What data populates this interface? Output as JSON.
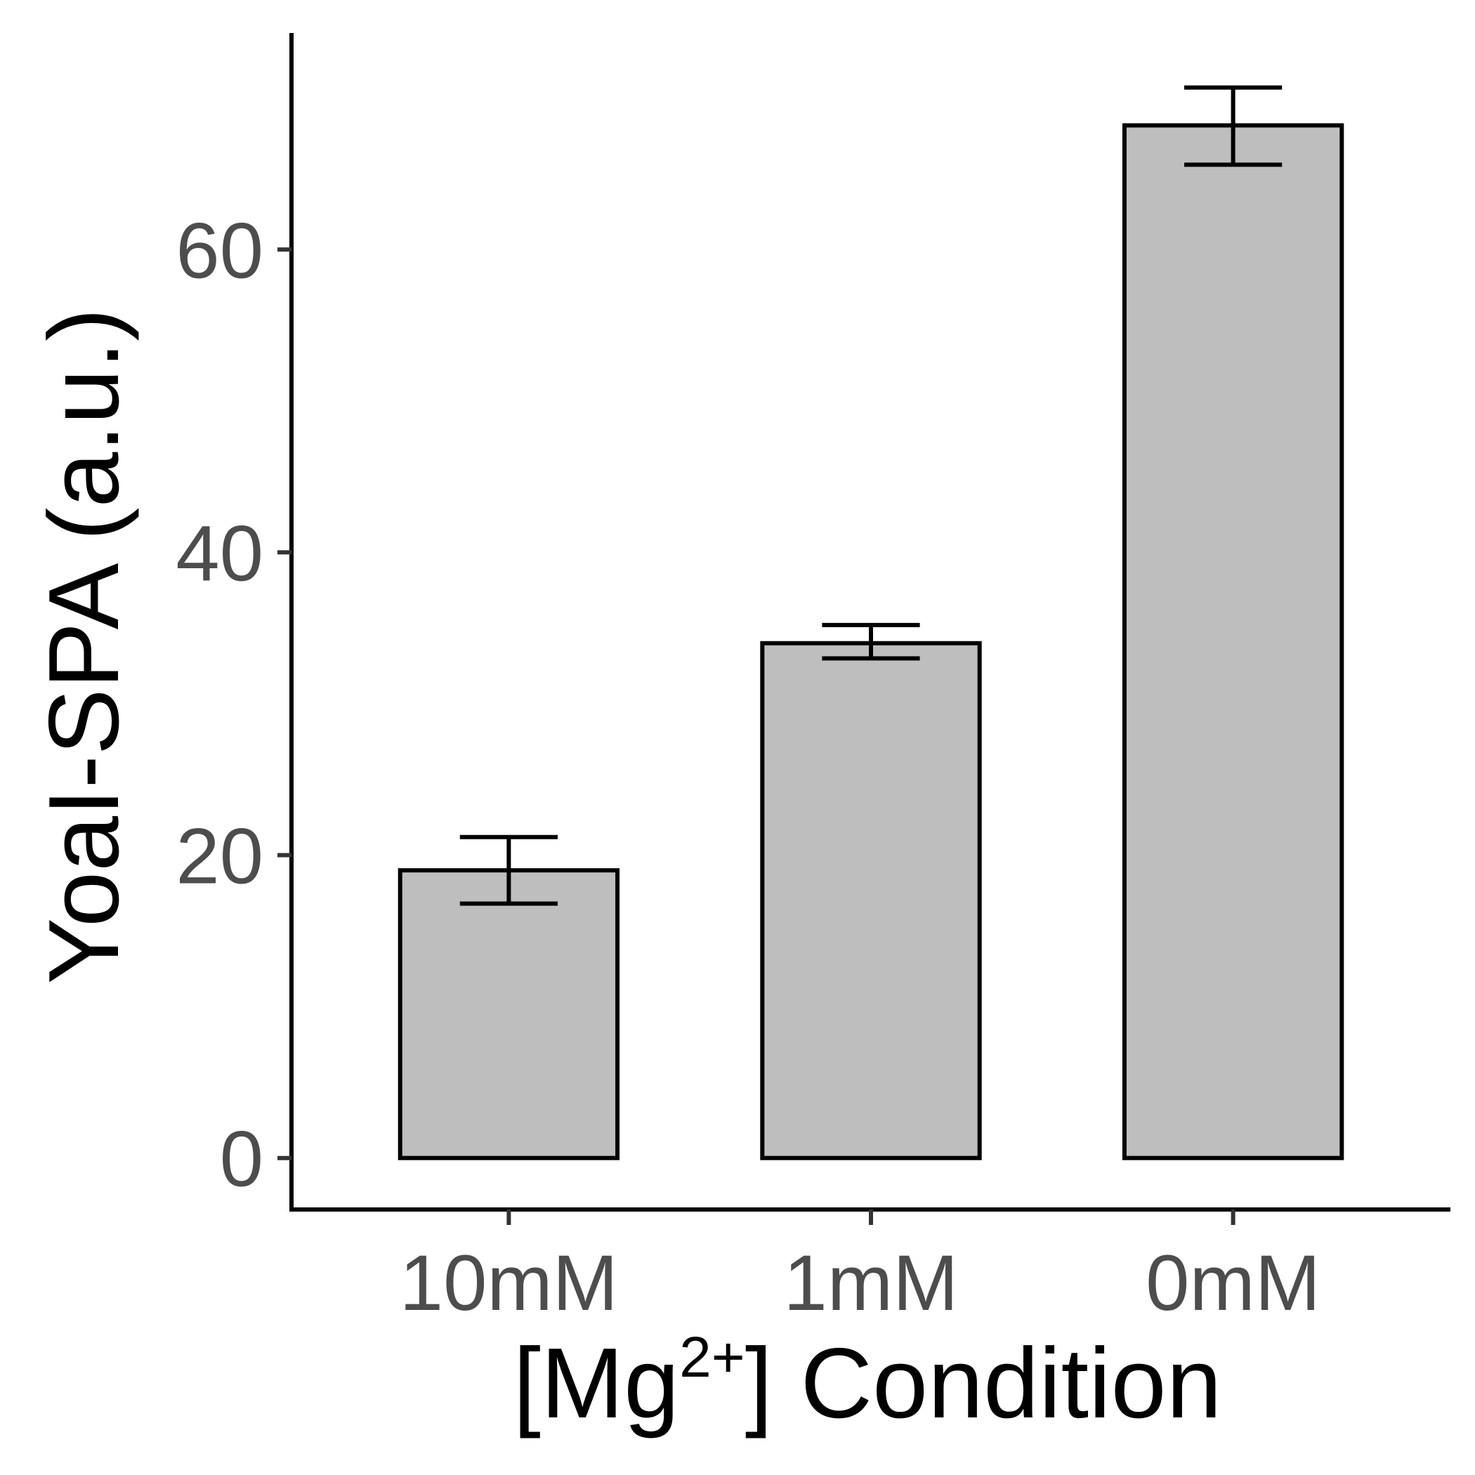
{
  "chart_data": {
    "type": "bar",
    "categories": [
      "10mM",
      "1mM",
      "0mM"
    ],
    "values": [
      19,
      34,
      68.2
    ],
    "error_bars": [
      {
        "low": 16.8,
        "high": 21.2
      },
      {
        "low": 33,
        "high": 35.2
      },
      {
        "low": 65.6,
        "high": 70.7
      }
    ],
    "y_ticks": [
      0,
      20,
      40,
      60
    ],
    "ylim": [
      -3.4,
      74.3
    ],
    "ylabel": "YoaI-SPA (a.u.)",
    "xlabel": {
      "prefix": "[Mg",
      "superscript": "2+",
      "suffix": "] Condition"
    },
    "grid": false,
    "legend": "none",
    "colors": {
      "bar_fill": "#bebebe",
      "bar_stroke": "#000000",
      "axis": "#000000",
      "tick_label": "#4d4d4d"
    }
  }
}
